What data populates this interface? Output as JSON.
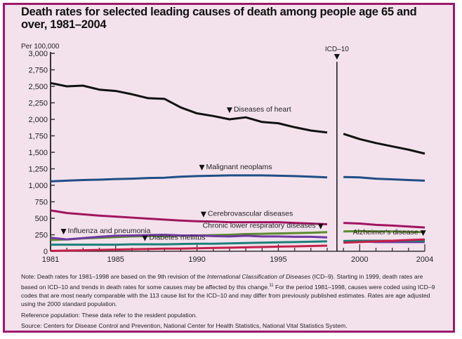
{
  "chart_data": {
    "type": "line",
    "title": "Death rates for selected leading causes of death among people age 65 and over, 1981–2004",
    "ylabel": "Per 100,000",
    "xlabel": "",
    "ylim": [
      0,
      3000
    ],
    "xlim": [
      1981,
      2004
    ],
    "yticks": [
      0,
      250,
      500,
      750,
      1000,
      1250,
      1500,
      1750,
      2000,
      2250,
      2500,
      2750,
      3000
    ],
    "ytick_labels": [
      "0",
      "250",
      "500",
      "750",
      "1,000",
      "1,250",
      "1,500",
      "1,750",
      "2,000",
      "2,250",
      "2,500",
      "2,750",
      "3,000"
    ],
    "xticks_labeled": [
      1981,
      1985,
      1990,
      1995,
      2000,
      2004
    ],
    "grid": false,
    "legend": "inline-labels",
    "annotation": {
      "label": "ICD–10",
      "x": 1998.6
    },
    "segments": [
      {
        "name": "ICD-9",
        "x": [
          1981,
          1982,
          1983,
          1984,
          1985,
          1986,
          1987,
          1988,
          1989,
          1990,
          1991,
          1992,
          1993,
          1994,
          1995,
          1996,
          1997,
          1998
        ]
      },
      {
        "name": "ICD-10",
        "x": [
          1999,
          2000,
          2001,
          2002,
          2003,
          2004
        ]
      }
    ],
    "series": [
      {
        "name": "Diseases of heart",
        "color": "#111111",
        "icd9": [
          2550,
          2500,
          2510,
          2450,
          2430,
          2380,
          2320,
          2310,
          2180,
          2090,
          2050,
          2000,
          2030,
          1960,
          1940,
          1880,
          1830,
          1800
        ],
        "icd10": [
          1780,
          1700,
          1640,
          1590,
          1540,
          1480
        ]
      },
      {
        "name": "Malignant neoplams",
        "color": "#1f4e86",
        "icd9": [
          1060,
          1070,
          1080,
          1085,
          1095,
          1100,
          1110,
          1115,
          1130,
          1140,
          1145,
          1150,
          1150,
          1150,
          1145,
          1140,
          1130,
          1120
        ],
        "icd10": [
          1125,
          1120,
          1100,
          1090,
          1080,
          1070
        ]
      },
      {
        "name": "Cerebrovascular diseases",
        "color": "#a0155f",
        "icd9": [
          620,
          580,
          560,
          540,
          525,
          510,
          495,
          480,
          465,
          455,
          450,
          440,
          440,
          440,
          440,
          430,
          420,
          410
        ],
        "icd10": [
          430,
          420,
          400,
          390,
          375,
          360
        ]
      },
      {
        "name": "Chronic lower respiratory diseases",
        "color": "#5c8a2e",
        "icd9": [
          170,
          180,
          195,
          205,
          215,
          225,
          230,
          230,
          235,
          240,
          245,
          250,
          260,
          265,
          270,
          275,
          280,
          290
        ],
        "icd10": [
          300,
          305,
          300,
          300,
          295,
          290
        ]
      },
      {
        "name": "Influenza and pneumonia",
        "color": "#6d3aa0",
        "icd9": [
          205,
          180,
          200,
          220,
          235,
          240,
          245,
          250,
          240,
          240,
          230,
          225,
          235,
          225,
          225,
          220,
          220,
          210
        ],
        "icd10": [
          150,
          150,
          140,
          140,
          140,
          140
        ]
      },
      {
        "name": "Diabetes mellitus",
        "color": "#1a7f7a",
        "icd9": [
          100,
          100,
          100,
          100,
          100,
          105,
          105,
          105,
          110,
          115,
          115,
          120,
          125,
          130,
          135,
          140,
          145,
          150
        ],
        "icd10": [
          155,
          160,
          160,
          160,
          160,
          155
        ]
      },
      {
        "name": "Alzheimer's disease",
        "color": "#c4204a",
        "icd9": [
          5,
          10,
          15,
          20,
          25,
          30,
          35,
          40,
          40,
          45,
          50,
          55,
          60,
          65,
          70,
          75,
          80,
          85
        ],
        "icd10": [
          130,
          140,
          150,
          160,
          170,
          180
        ]
      }
    ],
    "labels": [
      {
        "series": "Diseases of heart",
        "text": "Diseases of heart",
        "x": 1992,
        "y": 2000
      },
      {
        "series": "Malignant neoplams",
        "text": "Malignant neoplams",
        "x": 1990.3,
        "y": 1150
      },
      {
        "series": "Cerebrovascular diseases",
        "text": "Cerebrovascular diseases",
        "x": 1990.4,
        "y": 440
      },
      {
        "series": "Chronic lower respiratory diseases",
        "text": "Chronic lower respiratory diseases",
        "x": 1997.6,
        "y": 280
      },
      {
        "series": "Influenza and pneumonia",
        "text": "Influenza and pneumonia",
        "x": 1981.8,
        "y": 180
      },
      {
        "series": "Diabetes mellitus",
        "text": "Diabetes mellitus",
        "x": 1986.8,
        "y": 100
      },
      {
        "series": "Alzheimer's disease",
        "text": "Alzheimer's disease",
        "x": 2003.9,
        "y": 180
      }
    ]
  },
  "notes": {
    "note_prefix": "Note: Death rates for 1981–1998 are based on the 9th revision of the ",
    "note_italic": "International Classification of Diseases",
    "note_rest": " (ICD–9). Starting in 1999, death rates are based on ICD–10 and trends in death rates for some causes may be affected by this change.",
    "note_sup": "11",
    "note_tail": " For the period 1981–1998, causes were coded using ICD–9 codes that are most nearly comparable with the 113 cause list for the ICD–10 and may differ from previously published estimates. Rates are age adjusted using the 2000 standard population.",
    "reference": "Reference population: These data refer to the resident population.",
    "source": "Source: Centers for Disease Control and Prevention, National Center for Health Statistics, National Vital Statistics System."
  }
}
